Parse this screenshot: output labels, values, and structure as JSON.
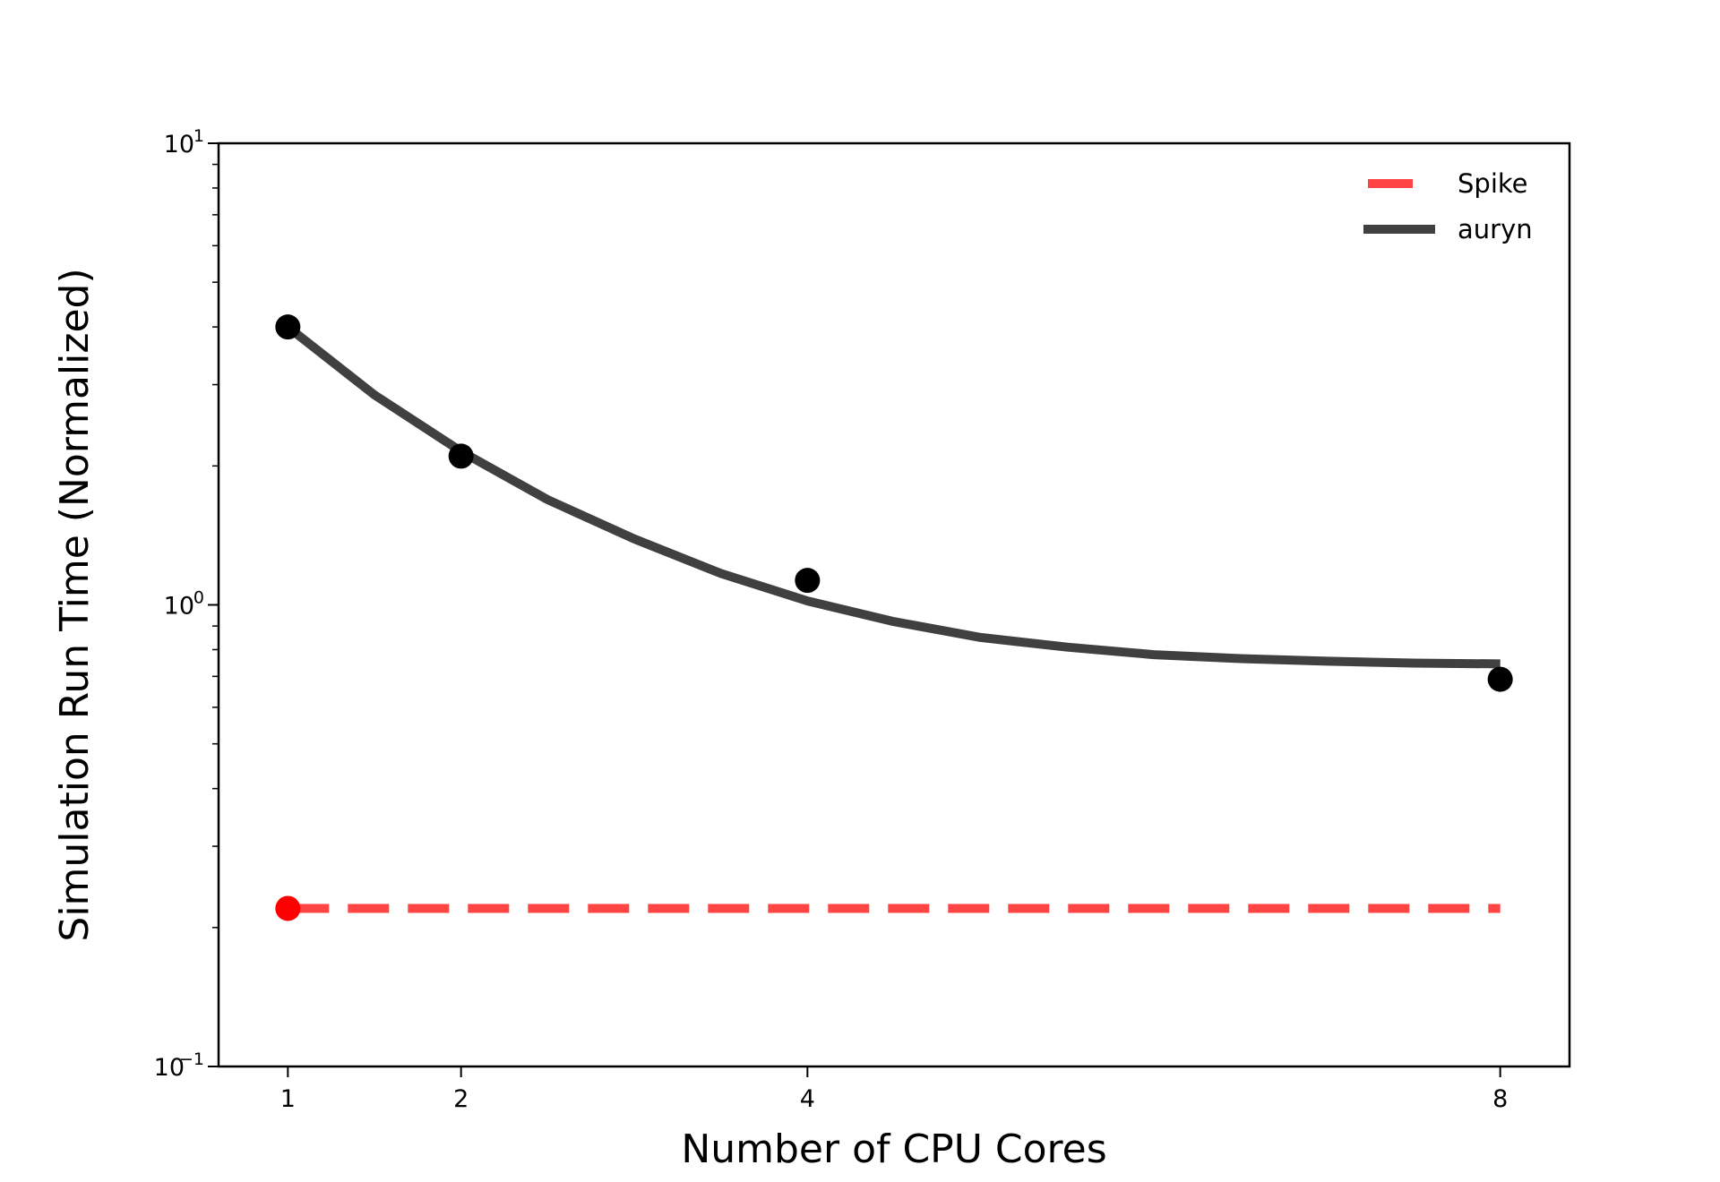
{
  "chart_data": {
    "type": "line",
    "xlabel": "Number of CPU Cores",
    "ylabel": "Simulation Run Time (Normalized)",
    "x_ticks": [
      1,
      2,
      4,
      8
    ],
    "x_tick_labels": [
      "1",
      "2",
      "4",
      "8"
    ],
    "xlim": [
      0.6,
      8.4
    ],
    "y_scale": "log",
    "ylim": [
      0.1,
      10
    ],
    "y_tick_labels": [
      {
        "value": 10,
        "base": "10",
        "exp": "1"
      },
      {
        "value": 1,
        "base": "10",
        "exp": "0"
      },
      {
        "value": 0.1,
        "base": "10",
        "exp": "−1"
      }
    ],
    "legend_position": "top-right",
    "series": [
      {
        "name": "Spike",
        "style": "dashed",
        "color": "#ff4444",
        "line": {
          "x": [
            1,
            8
          ],
          "y": [
            0.22,
            0.22
          ]
        },
        "points": {
          "x": [
            1
          ],
          "y": [
            0.22
          ],
          "color": "#ff0000"
        }
      },
      {
        "name": "auryn",
        "style": "solid",
        "color": "#404040",
        "line": {
          "x": [
            1,
            1.5,
            2,
            2.5,
            3,
            3.5,
            4,
            4.5,
            5,
            5.5,
            6,
            6.5,
            7,
            7.5,
            8
          ],
          "y": [
            4.0,
            2.85,
            2.15,
            1.69,
            1.39,
            1.17,
            1.02,
            0.92,
            0.85,
            0.81,
            0.78,
            0.765,
            0.755,
            0.748,
            0.745
          ]
        },
        "points": {
          "x": [
            1,
            2,
            4,
            8
          ],
          "y": [
            4.0,
            2.1,
            1.13,
            0.69
          ],
          "color": "#000000"
        }
      }
    ],
    "grid": false
  }
}
